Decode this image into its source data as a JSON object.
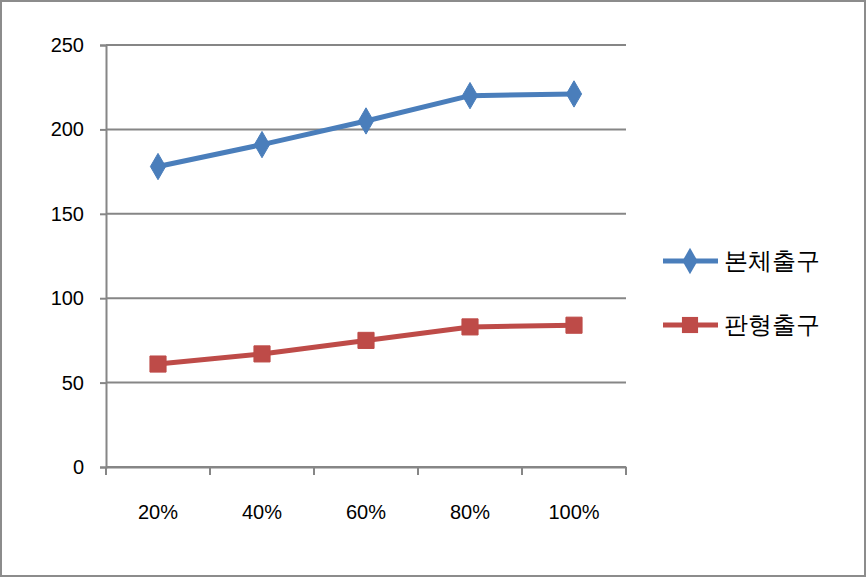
{
  "chart_data": {
    "type": "line",
    "categories": [
      "20%",
      "40%",
      "60%",
      "80%",
      "100%"
    ],
    "series": [
      {
        "name": "본체출구",
        "color": "#4a7ebb",
        "marker": "diamond",
        "values": [
          178,
          191,
          205,
          220,
          221
        ]
      },
      {
        "name": "판형출구",
        "color": "#be4b48",
        "marker": "square",
        "values": [
          61,
          67,
          75,
          83,
          84
        ]
      }
    ],
    "ylim": [
      0,
      250
    ],
    "yticks": [
      0,
      50,
      100,
      150,
      200,
      250
    ],
    "grid": true,
    "legend": "right"
  }
}
